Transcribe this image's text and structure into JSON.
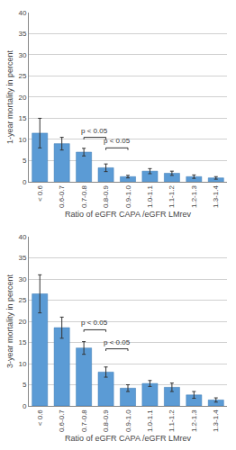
{
  "chart_data": [
    {
      "type": "bar",
      "categories": [
        "< 0.6",
        "0.6-0.7",
        "0.7-0.8",
        "0.8-0.9",
        "0.9-1.0",
        "1.0-1.1",
        "1.1-1.2",
        "1.2-1.3",
        "1.3-1.4"
      ],
      "values": [
        11.5,
        9.0,
        7.0,
        3.3,
        1.2,
        2.5,
        2.0,
        1.2,
        0.9
      ],
      "errors": [
        3.5,
        1.5,
        0.9,
        0.9,
        0.3,
        0.6,
        0.5,
        0.4,
        0.3
      ],
      "color": "#5b9bd5",
      "xlabel": "Ratio of eGFR CAPA /eGFR LMrev",
      "ylabel": "1-year mortality in percent",
      "ylim": [
        0,
        40
      ],
      "yticks": [
        0,
        5,
        10,
        15,
        20,
        25,
        30,
        35,
        40
      ],
      "grid": true,
      "annotations": [
        {
          "from": "0.7-0.8",
          "to": "0.8-0.9",
          "y": 10.0,
          "height": 0.5,
          "label": "p < 0.05"
        },
        {
          "from": "0.8-0.9",
          "to": "0.9-1.0",
          "y": 7.5,
          "height": 0.5,
          "label": "p < 0.05"
        }
      ]
    },
    {
      "type": "bar",
      "categories": [
        "< 0.6",
        "0.6-0.7",
        "0.7-0.8",
        "0.8-0.9",
        "0.9-1.0",
        "1.0-1.1",
        "1.1-1.2",
        "1.2-1.3",
        "1.3-1.4"
      ],
      "values": [
        26.5,
        18.5,
        13.7,
        8.0,
        4.2,
        5.3,
        4.4,
        2.6,
        1.4
      ],
      "errors": [
        4.5,
        2.5,
        1.5,
        1.2,
        0.8,
        0.7,
        1.0,
        0.8,
        0.5
      ],
      "color": "#5b9bd5",
      "xlabel": "Ratio of eGFR CAPA /eGFR LMrev",
      "ylabel": "3-year mortality in percent",
      "ylim": [
        0,
        40
      ],
      "yticks": [
        0,
        5,
        10,
        15,
        20,
        25,
        30,
        35,
        40
      ],
      "grid": true,
      "annotations": [
        {
          "from": "0.7-0.8",
          "to": "0.8-0.9",
          "y": 17.5,
          "height": 0.5,
          "label": "p < 0.05"
        },
        {
          "from": "0.8-0.9",
          "to": "0.9-1.0",
          "y": 13.0,
          "height": 0.5,
          "label": "p < 0.05"
        }
      ]
    }
  ]
}
